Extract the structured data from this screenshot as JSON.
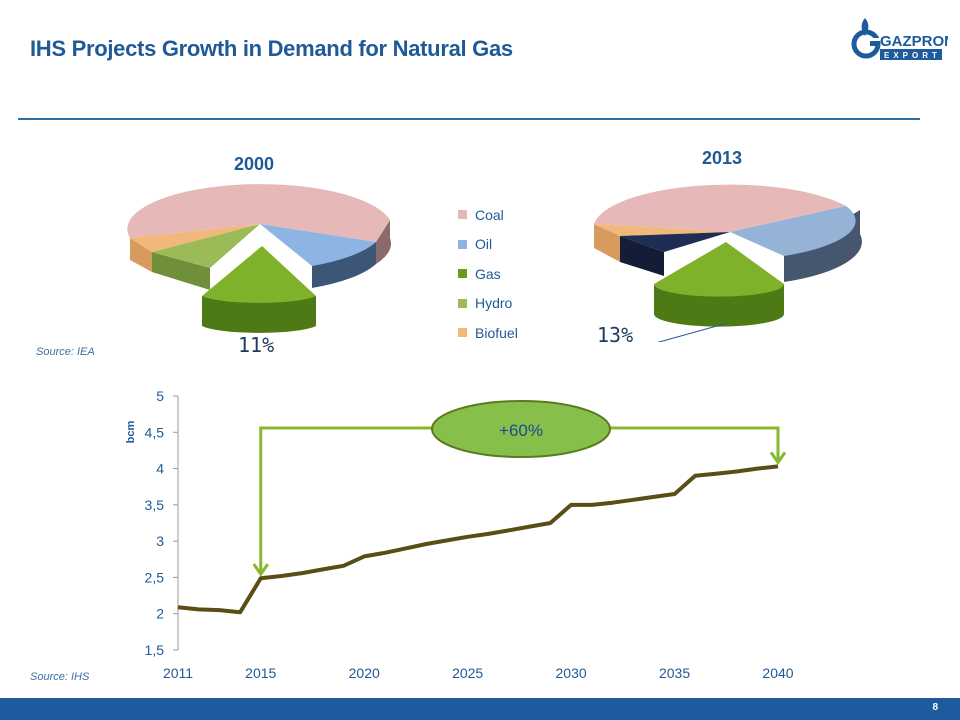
{
  "slide": {
    "title": "IHS Projects Growth in Demand for Natural Gas",
    "page_number": "8",
    "source_top": "Source:  IEA",
    "source_bottom": "Source: IHS"
  },
  "logo": {
    "line1": "GAZPROM",
    "line2": "EXPORT",
    "color": "#1d5a9e"
  },
  "colors": {
    "coal": "#e6b9b8",
    "oil": "#8db4e2",
    "gas": "#6b9a1e",
    "hydro": "#9bbb59",
    "biofuel": "#f2b77b",
    "other_2013": "#1f2d56",
    "line": "#5a4e16",
    "arrow": "#86b92e",
    "bubble": "#86c04a"
  },
  "chart_data": [
    {
      "type": "pie",
      "title": "2000",
      "categories": [
        "Coal",
        "Oil",
        "Gas",
        "Hydro",
        "Biofuel"
      ],
      "legend": [
        "Coal",
        "Oil",
        "Gas",
        "Hydro",
        "Biofuel"
      ],
      "legend_position": "right",
      "gas_label": "11%"
    },
    {
      "type": "pie",
      "title": "2013",
      "gas_label": "13%"
    },
    {
      "type": "line",
      "ylabel": "bcm",
      "ylim": [
        1.5,
        5
      ],
      "yticks": [
        "1,5",
        "2",
        "2,5",
        "3",
        "3,5",
        "4",
        "4,5",
        "5"
      ],
      "xticks": [
        "2011",
        "2015",
        "2020",
        "2025",
        "2030",
        "2035",
        "2040"
      ],
      "xlim": [
        2011,
        2040
      ],
      "x": [
        2011,
        2012,
        2013,
        2014,
        2015,
        2016,
        2017,
        2018,
        2019,
        2020,
        2021,
        2022,
        2023,
        2024,
        2025,
        2026,
        2027,
        2028,
        2029,
        2030,
        2031,
        2032,
        2033,
        2034,
        2035,
        2036,
        2037,
        2038,
        2039,
        2040
      ],
      "values": [
        2.09,
        2.06,
        2.05,
        2.02,
        2.49,
        2.52,
        2.56,
        2.61,
        2.66,
        2.79,
        2.84,
        2.9,
        2.96,
        3.01,
        3.06,
        3.1,
        3.15,
        3.2,
        3.25,
        3.5,
        3.5,
        3.53,
        3.57,
        3.61,
        3.65,
        3.9,
        3.93,
        3.96,
        4.0,
        4.03
      ],
      "annotation": "+60%"
    }
  ]
}
